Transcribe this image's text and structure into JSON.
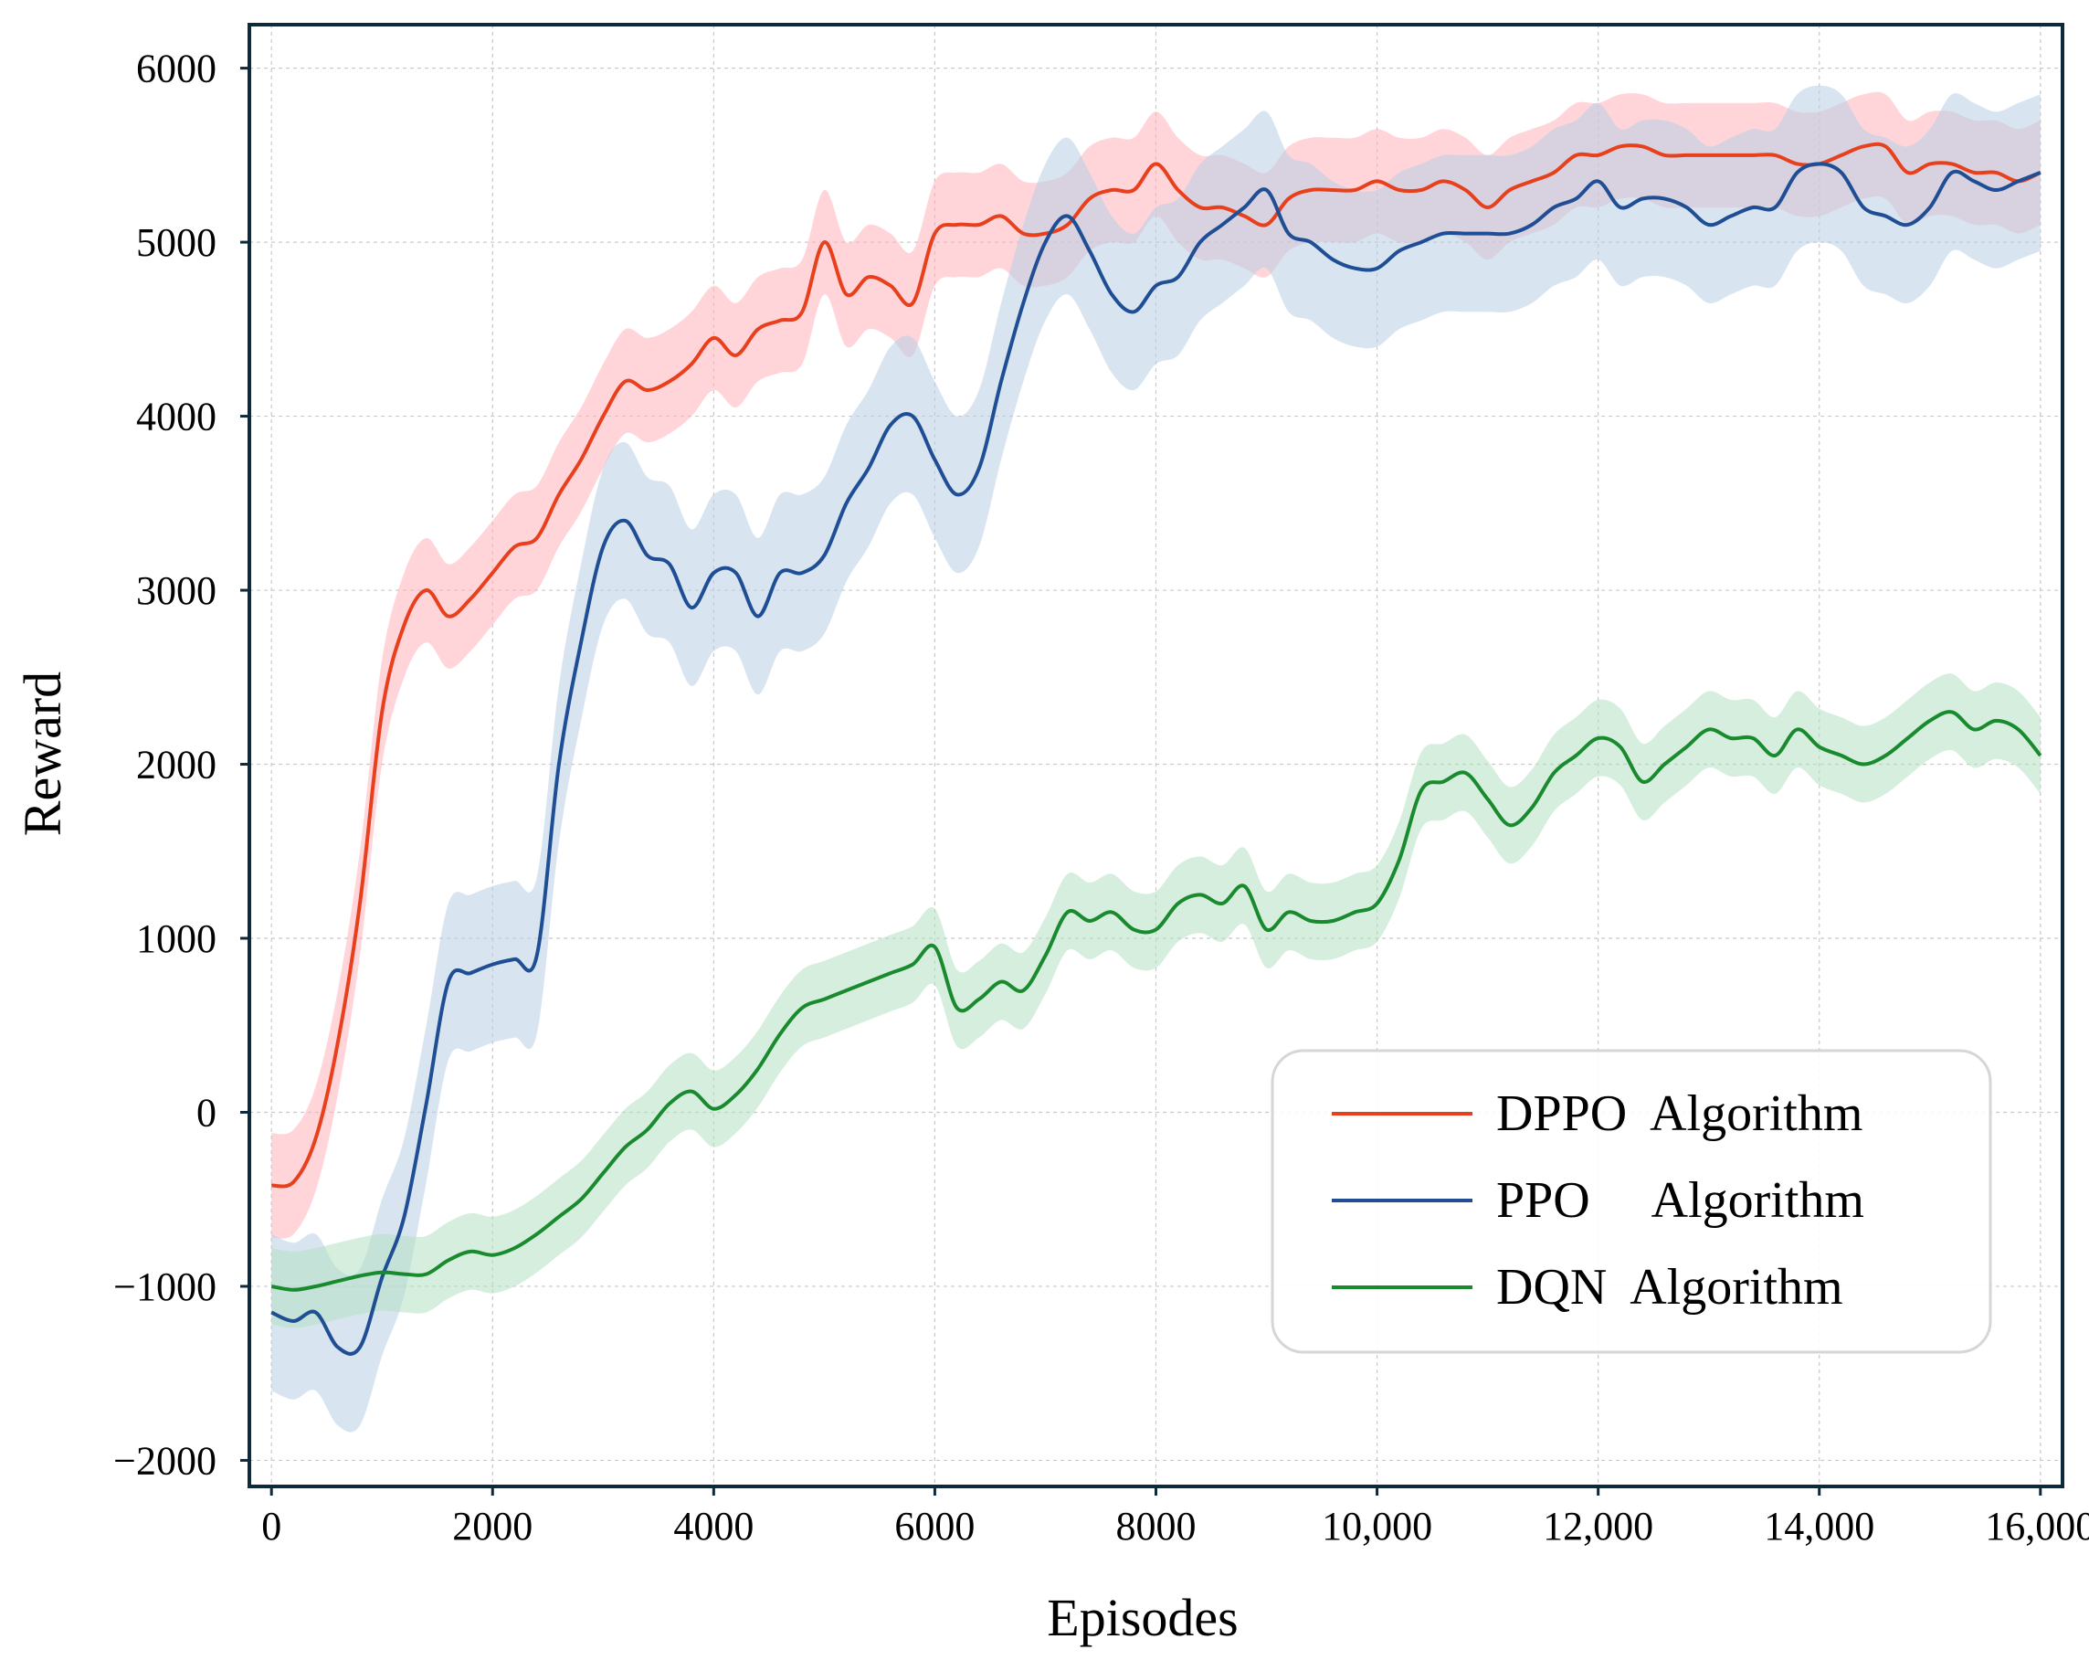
{
  "chart_data": {
    "type": "line",
    "title": "",
    "xlabel": "Episodes",
    "ylabel": "Reward",
    "xlim": [
      -200,
      16200
    ],
    "ylim": [
      -2150,
      6250
    ],
    "grid": true,
    "legend_position": "bottom-right",
    "xticks": [
      0,
      2000,
      4000,
      6000,
      8000,
      10000,
      12000,
      14000,
      16000
    ],
    "xtick_labels": [
      "0",
      "2000",
      "4000",
      "6000",
      "8000",
      "10,000",
      "12,000",
      "14,000",
      "16,000"
    ],
    "yticks": [
      -2000,
      -1000,
      0,
      1000,
      2000,
      3000,
      4000,
      5000,
      6000
    ],
    "ytick_labels": [
      "−2000",
      "−1000",
      "0",
      "1000",
      "2000",
      "3000",
      "4000",
      "5000",
      "6000"
    ],
    "series": [
      {
        "name": "DPPO  Algorithm",
        "color": "#e8401c",
        "band_color": "#ffb3bb",
        "band_width": 300,
        "x": [
          0,
          200,
          400,
          600,
          800,
          1000,
          1200,
          1400,
          1600,
          1800,
          2000,
          2200,
          2400,
          2600,
          2800,
          3000,
          3200,
          3400,
          3600,
          3800,
          4000,
          4200,
          4400,
          4600,
          4800,
          5000,
          5200,
          5400,
          5600,
          5800,
          6000,
          6200,
          6400,
          6600,
          6800,
          7000,
          7200,
          7400,
          7600,
          7800,
          8000,
          8200,
          8400,
          8600,
          8800,
          9000,
          9200,
          9400,
          9600,
          9800,
          10000,
          10200,
          10400,
          10600,
          10800,
          11000,
          11200,
          11400,
          11600,
          11800,
          12000,
          12200,
          12400,
          12600,
          12800,
          13000,
          13200,
          13400,
          13600,
          13800,
          14000,
          14200,
          14400,
          14600,
          14800,
          15000,
          15200,
          15400,
          15600,
          15800,
          16000
        ],
        "values": [
          -420,
          -400,
          -150,
          400,
          1200,
          2300,
          2800,
          3000,
          2850,
          2950,
          3100,
          3250,
          3300,
          3550,
          3750,
          4000,
          4200,
          4150,
          4200,
          4300,
          4450,
          4350,
          4500,
          4550,
          4600,
          5000,
          4700,
          4800,
          4750,
          4650,
          5050,
          5100,
          5100,
          5150,
          5050,
          5050,
          5100,
          5250,
          5300,
          5300,
          5450,
          5300,
          5200,
          5200,
          5150,
          5100,
          5250,
          5300,
          5300,
          5300,
          5350,
          5300,
          5300,
          5350,
          5300,
          5200,
          5300,
          5350,
          5400,
          5500,
          5500,
          5550,
          5550,
          5500,
          5500,
          5500,
          5500,
          5500,
          5500,
          5450,
          5450,
          5500,
          5550,
          5550,
          5400,
          5450,
          5450,
          5400,
          5400,
          5350,
          5400
        ]
      },
      {
        "name": "PPO     Algorithm",
        "color": "#1f4e94",
        "band_color": "#b8cfe6",
        "band_width": 450,
        "x": [
          0,
          200,
          400,
          600,
          800,
          1000,
          1200,
          1400,
          1600,
          1800,
          2000,
          2200,
          2400,
          2600,
          2800,
          3000,
          3200,
          3400,
          3600,
          3800,
          4000,
          4200,
          4400,
          4600,
          4800,
          5000,
          5200,
          5400,
          5600,
          5800,
          6000,
          6200,
          6400,
          6600,
          6800,
          7000,
          7200,
          7400,
          7600,
          7800,
          8000,
          8200,
          8400,
          8600,
          8800,
          9000,
          9200,
          9400,
          9600,
          9800,
          10000,
          10200,
          10400,
          10600,
          10800,
          11000,
          11200,
          11400,
          11600,
          11800,
          12000,
          12200,
          12400,
          12600,
          12800,
          13000,
          13200,
          13400,
          13600,
          13800,
          14000,
          14200,
          14400,
          14600,
          14800,
          15000,
          15200,
          15400,
          15600,
          15800,
          16000
        ],
        "values": [
          -1150,
          -1200,
          -1150,
          -1350,
          -1350,
          -950,
          -600,
          50,
          750,
          800,
          850,
          880,
          900,
          2000,
          2700,
          3250,
          3400,
          3200,
          3150,
          2900,
          3100,
          3100,
          2850,
          3100,
          3100,
          3200,
          3500,
          3700,
          3950,
          4000,
          3750,
          3550,
          3700,
          4200,
          4650,
          5000,
          5150,
          4950,
          4700,
          4600,
          4750,
          4800,
          5000,
          5100,
          5200,
          5300,
          5050,
          5000,
          4900,
          4850,
          4850,
          4950,
          5000,
          5050,
          5050,
          5050,
          5050,
          5100,
          5200,
          5250,
          5350,
          5200,
          5250,
          5250,
          5200,
          5100,
          5150,
          5200,
          5200,
          5400,
          5450,
          5400,
          5200,
          5150,
          5100,
          5200,
          5400,
          5350,
          5300,
          5350,
          5400
        ]
      },
      {
        "name": "DQN  Algorithm",
        "color": "#1a8a2e",
        "band_color": "#b4e0c2",
        "band_width": 220,
        "x": [
          0,
          200,
          400,
          600,
          800,
          1000,
          1200,
          1400,
          1600,
          1800,
          2000,
          2200,
          2400,
          2600,
          2800,
          3000,
          3200,
          3400,
          3600,
          3800,
          4000,
          4200,
          4400,
          4600,
          4800,
          5000,
          5200,
          5400,
          5600,
          5800,
          6000,
          6200,
          6400,
          6600,
          6800,
          7000,
          7200,
          7400,
          7600,
          7800,
          8000,
          8200,
          8400,
          8600,
          8800,
          9000,
          9200,
          9400,
          9600,
          9800,
          10000,
          10200,
          10400,
          10600,
          10800,
          11000,
          11200,
          11400,
          11600,
          11800,
          12000,
          12200,
          12400,
          12600,
          12800,
          13000,
          13200,
          13400,
          13600,
          13800,
          14000,
          14200,
          14400,
          14600,
          14800,
          15000,
          15200,
          15400,
          15600,
          15800,
          16000
        ],
        "values": [
          -1000,
          -1020,
          -1000,
          -970,
          -940,
          -920,
          -930,
          -930,
          -850,
          -800,
          -820,
          -780,
          -700,
          -600,
          -500,
          -350,
          -200,
          -100,
          50,
          120,
          20,
          100,
          250,
          450,
          600,
          650,
          700,
          750,
          800,
          850,
          950,
          600,
          650,
          750,
          700,
          900,
          1150,
          1100,
          1150,
          1050,
          1050,
          1200,
          1250,
          1200,
          1300,
          1050,
          1150,
          1100,
          1100,
          1150,
          1200,
          1450,
          1850,
          1900,
          1950,
          1800,
          1650,
          1750,
          1950,
          2050,
          2150,
          2100,
          1900,
          2000,
          2100,
          2200,
          2150,
          2150,
          2050,
          2200,
          2100,
          2050,
          2000,
          2050,
          2150,
          2250,
          2300,
          2200,
          2250,
          2200,
          2050
        ]
      }
    ]
  }
}
